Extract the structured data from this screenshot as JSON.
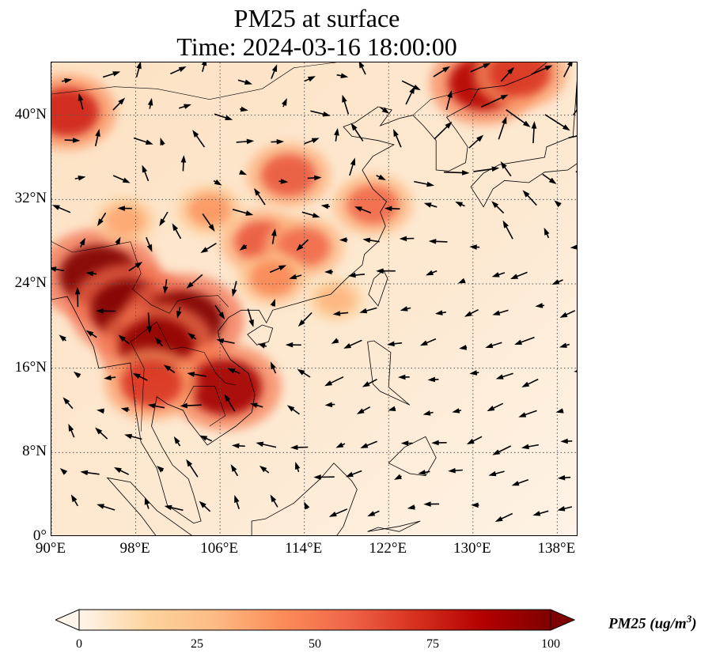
{
  "title": {
    "line1": "PM25 at surface",
    "line2": "Time: 2024-03-16 18:00:00"
  },
  "map": {
    "type": "geographic-map",
    "projection": "PlateCarree",
    "lon_range": [
      90,
      140
    ],
    "lat_range": [
      0,
      45
    ],
    "lat_ticks": [
      {
        "value": 0,
        "label": "0°"
      },
      {
        "value": 8,
        "label": "8°N"
      },
      {
        "value": 16,
        "label": "16°N"
      },
      {
        "value": 24,
        "label": "24°N"
      },
      {
        "value": 32,
        "label": "32°N"
      },
      {
        "value": 40,
        "label": "40°N"
      }
    ],
    "lon_ticks": [
      {
        "value": 90,
        "label": "90°E"
      },
      {
        "value": 98,
        "label": "98°E"
      },
      {
        "value": 106,
        "label": "106°E"
      },
      {
        "value": 114,
        "label": "114°E"
      },
      {
        "value": 122,
        "label": "122°E"
      },
      {
        "value": 130,
        "label": "130°E"
      },
      {
        "value": 138,
        "label": "138°E"
      }
    ],
    "gridlines": true,
    "gridline_style": "dotted",
    "field": "PM25",
    "overlay": "wind vectors",
    "background_color": "#fdebd6",
    "hotspots": [
      {
        "lon": 91.5,
        "lat": 40.3,
        "value": 75
      },
      {
        "lon": 94.5,
        "lat": 24.8,
        "value": 100
      },
      {
        "lon": 97.5,
        "lat": 21.5,
        "value": 100
      },
      {
        "lon": 102.5,
        "lat": 20.5,
        "value": 100
      },
      {
        "lon": 100.0,
        "lat": 18.0,
        "value": 95
      },
      {
        "lon": 106.5,
        "lat": 14.2,
        "value": 90
      },
      {
        "lon": 99.5,
        "lat": 14.5,
        "value": 70
      },
      {
        "lon": 110.0,
        "lat": 28.0,
        "value": 60
      },
      {
        "lon": 114.0,
        "lat": 27.5,
        "value": 55
      },
      {
        "lon": 112.5,
        "lat": 34.3,
        "value": 60
      },
      {
        "lon": 120.5,
        "lat": 31.5,
        "value": 55
      },
      {
        "lon": 131.0,
        "lat": 43.0,
        "value": 85
      },
      {
        "lon": 134.5,
        "lat": 44.0,
        "value": 70
      },
      {
        "lon": 111.0,
        "lat": 24.5,
        "value": 45
      },
      {
        "lon": 97.0,
        "lat": 30.0,
        "value": 35
      },
      {
        "lon": 117.0,
        "lat": 22.5,
        "value": 30
      },
      {
        "lon": 105.0,
        "lat": 31.0,
        "value": 40
      }
    ]
  },
  "colorbar": {
    "label_text": "PM25 (ug/m",
    "label_superscript": "3",
    "label_close": ")",
    "vmin": 0,
    "vmax": 100,
    "ticks": [
      "0",
      "25",
      "50",
      "75",
      "100"
    ],
    "colors": [
      "#fff5eb",
      "#fdd49e",
      "#fdbb84",
      "#fc8d59",
      "#ef6548",
      "#d7301f",
      "#b30000",
      "#7f0000"
    ],
    "extend": "both"
  }
}
